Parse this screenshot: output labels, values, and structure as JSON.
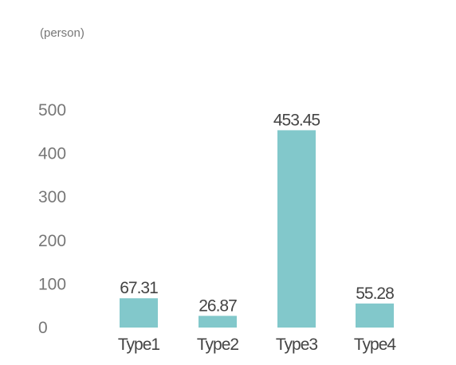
{
  "chart_data": {
    "type": "bar",
    "unit_label": "(person)",
    "categories": [
      "Type1",
      "Type2",
      "Type3",
      "Type4"
    ],
    "values": [
      67.31,
      26.87,
      453.45,
      55.28
    ],
    "data_labels": [
      "67.31",
      "26.87",
      "453.45",
      "55.28"
    ],
    "yticks": [
      "0",
      "100",
      "200",
      "300",
      "400",
      "500"
    ],
    "ylim": [
      0,
      500
    ],
    "bar_color": "#82c8cb",
    "grid": false,
    "legend": "none"
  }
}
